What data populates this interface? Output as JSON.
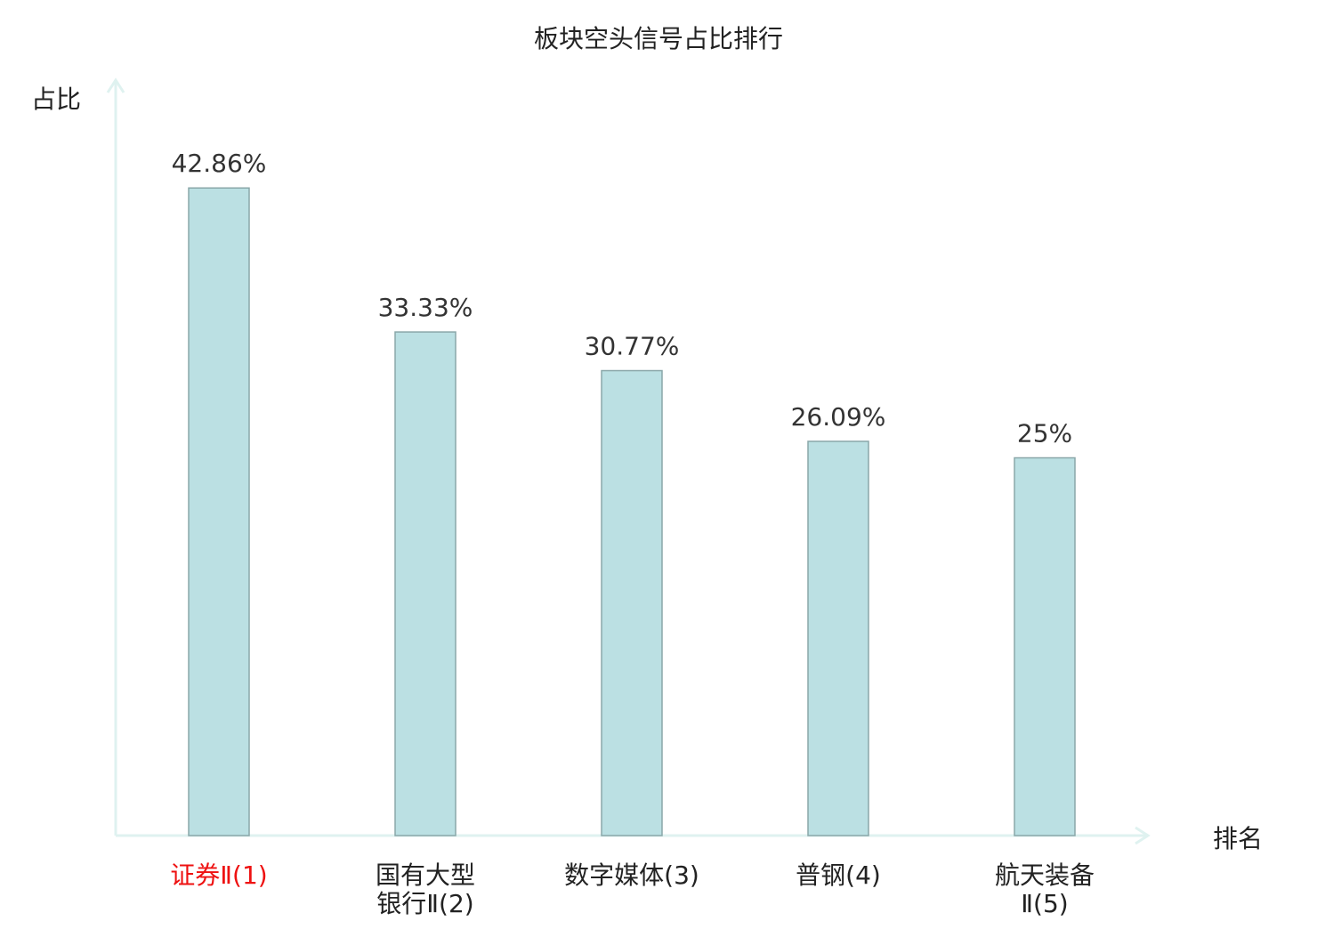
{
  "chart_data": {
    "type": "bar",
    "title": "板块空头信号占比排行",
    "xlabel": "排名",
    "ylabel": "占比",
    "categories": [
      "证券Ⅱ(1)",
      "国有大型银行Ⅱ(2)",
      "数字媒体(3)",
      "普钢(4)",
      "航天装备Ⅱ(5)"
    ],
    "values": [
      42.86,
      33.33,
      30.77,
      26.09,
      25
    ],
    "data_labels": [
      "42.86%",
      "33.33%",
      "30.77%",
      "26.09%",
      "25%"
    ],
    "ylim": [
      0,
      50
    ],
    "grid": false,
    "highlight_index": 0,
    "colors": {
      "bar_fill": "#bbe0e3",
      "bar_stroke": "#8aa7a9",
      "axis": "#dff2f0",
      "highlight_label": "#ee1111",
      "label": "#222222",
      "data_label": "#333333"
    }
  }
}
